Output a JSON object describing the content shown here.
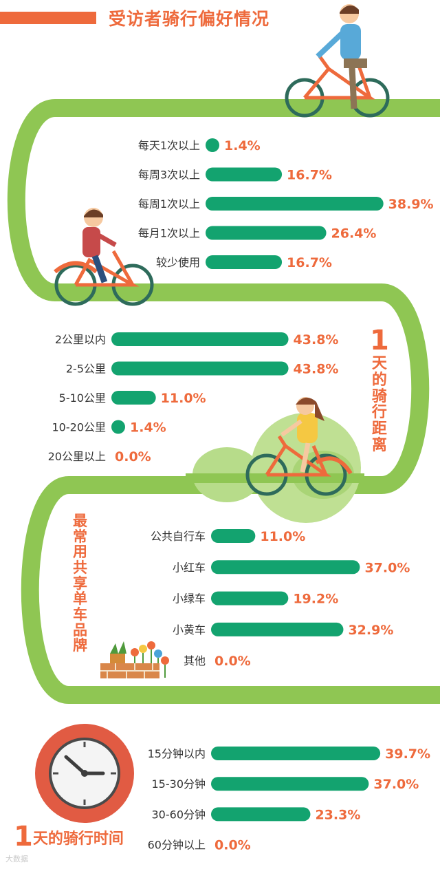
{
  "title": "受访者骑行偏好情况",
  "colors": {
    "bar": "#13a36f",
    "value": "#ee6a3c",
    "road": "#8fc653",
    "title": "#ee6a3c",
    "label": "#333333"
  },
  "icons": [
    "cyclist-man-icon",
    "cyclist-boy-icon",
    "cyclist-girl-icon",
    "flower-pot-icon",
    "brick-wall-icon",
    "clock-icon",
    "title-stripe"
  ],
  "sections": {
    "distance_title": {
      "num": "1",
      "chars": [
        "天",
        "的",
        "骑",
        "行",
        "距",
        "离"
      ]
    },
    "brand_title": {
      "chars": [
        "最",
        "常",
        "用",
        "共",
        "享",
        "单",
        "车",
        "品",
        "牌"
      ]
    },
    "time_title": {
      "num": "1",
      "text": "天的骑行时间"
    }
  },
  "chart_data": [
    {
      "type": "bar",
      "orientation": "horizontal",
      "categories": [
        "每天1次以上",
        "每周3次以上",
        "每周1次以上",
        "每月1次以上",
        "较少使用"
      ],
      "values": [
        1.4,
        16.7,
        38.9,
        26.4,
        16.7
      ],
      "labels": [
        "1.4%",
        "16.7%",
        "38.9%",
        "26.4%",
        "16.7%"
      ]
    },
    {
      "type": "bar",
      "orientation": "horizontal",
      "categories": [
        "2公里以内",
        "2-5公里",
        "5-10公里",
        "10-20公里",
        "20公里以上"
      ],
      "values": [
        43.8,
        43.8,
        11.0,
        1.4,
        0.0
      ],
      "labels": [
        "43.8%",
        "43.8%",
        "11.0%",
        "1.4%",
        "0.0%"
      ]
    },
    {
      "type": "bar",
      "orientation": "horizontal",
      "categories": [
        "公共自行车",
        "小红车",
        "小绿车",
        "小黄车",
        "其他"
      ],
      "values": [
        11.0,
        37.0,
        19.2,
        32.9,
        0.0
      ],
      "labels": [
        "11.0%",
        "37.0%",
        "19.2%",
        "32.9%",
        "0.0%"
      ]
    },
    {
      "type": "bar",
      "orientation": "horizontal",
      "categories": [
        "15分钟以内",
        "15-30分钟",
        "30-60分钟",
        "60分钟以上"
      ],
      "values": [
        39.7,
        37.0,
        23.3,
        0.0
      ],
      "labels": [
        "39.7%",
        "37.0%",
        "23.3%",
        "0.0%"
      ]
    }
  ],
  "watermark": "大数据"
}
